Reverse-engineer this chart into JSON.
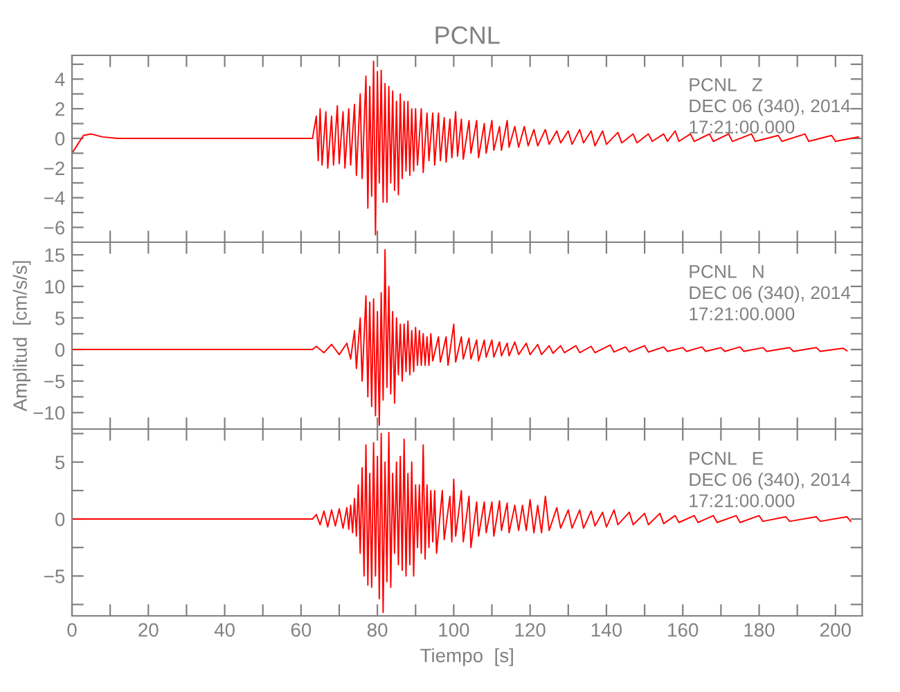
{
  "chart_data": [
    {
      "type": "line",
      "title": "PCNL",
      "xlim": [
        0,
        207
      ],
      "ylim": [
        -7,
        5.6
      ],
      "tick_labels": "y",
      "xticks": [
        0,
        {
          "value": 10,
          "label": null
        },
        20,
        {
          "value": 30,
          "label": null
        },
        40,
        {
          "value": 50,
          "label": null
        },
        60,
        {
          "value": 70,
          "label": null
        },
        80,
        {
          "value": 90,
          "label": null
        },
        100,
        {
          "value": 110,
          "label": null
        },
        120,
        {
          "value": 130,
          "label": null
        },
        140,
        {
          "value": 150,
          "label": null
        },
        160,
        {
          "value": 170,
          "label": null
        },
        180,
        {
          "value": 190,
          "label": null
        },
        200
      ],
      "yticks": [
        -6,
        {
          "value": -5,
          "label": null
        },
        -4,
        {
          "value": -3,
          "label": null
        },
        -2,
        {
          "value": -1,
          "label": null
        },
        0,
        {
          "value": 1,
          "label": null
        },
        2,
        {
          "value": 3,
          "label": null
        },
        4,
        {
          "value": 5,
          "label": null
        }
      ],
      "annotations": [
        "PCNL   Z",
        "DEC 06 (340), 2014",
        "17:21:00.000"
      ],
      "series": [
        {
          "color": "#ff0000",
          "x": [
            0,
            1,
            3,
            5,
            8,
            12,
            63,
            64,
            64.5,
            65,
            65.5,
            66.5,
            67,
            68,
            68.5,
            69.5,
            70,
            71,
            71.5,
            72.5,
            73,
            74,
            74.5,
            75.5,
            76,
            77,
            77.5,
            78,
            78.5,
            79,
            79.5,
            80,
            80.5,
            81,
            81.5,
            82,
            82.5,
            83,
            83.5,
            84,
            84.5,
            85,
            85.5,
            86,
            86.5,
            87,
            87.5,
            88,
            88.5,
            89,
            89.5,
            90,
            90.5,
            91.5,
            92,
            93,
            93.5,
            94.5,
            95,
            96,
            96.5,
            97.5,
            98,
            99,
            99.5,
            100.5,
            101,
            102,
            102.5,
            104,
            104.5,
            106,
            106.5,
            108,
            108.5,
            110,
            110.5,
            112,
            112.5,
            114,
            114.5,
            116,
            117,
            118.5,
            119.5,
            121,
            122,
            124,
            125,
            127,
            128,
            130,
            131,
            133,
            134,
            136,
            137,
            139,
            140,
            143,
            144,
            147,
            148,
            151,
            152,
            155,
            156,
            158,
            159,
            162,
            163,
            167,
            168,
            172,
            173,
            178,
            179,
            185,
            186,
            192,
            193,
            199,
            200,
            206
          ],
          "values": [
            -1.0,
            -0.6,
            0.2,
            0.3,
            0.1,
            0,
            0,
            1.5,
            -1.5,
            2,
            -1.8,
            1.8,
            -2,
            1.5,
            -1.8,
            2.2,
            -1.7,
            1.8,
            -2,
            2,
            -1.8,
            2.3,
            -2.5,
            3,
            -2.7,
            4.2,
            -4.7,
            3.5,
            -3.9,
            5.2,
            -6.5,
            4.5,
            -3,
            4.6,
            -4.3,
            3.7,
            -4.3,
            3.5,
            -3,
            3.2,
            -3.5,
            2.5,
            -3.8,
            3,
            -2.7,
            2.5,
            -2.2,
            2.5,
            -2.5,
            2,
            -2.2,
            2,
            -1.8,
            2,
            -2.3,
            1.7,
            -1.5,
            1.7,
            -1.8,
            1.7,
            -1.5,
            1.4,
            -1.6,
            1.3,
            -1.3,
            1.8,
            -1.2,
            1.3,
            -1.4,
            1.2,
            -1,
            1.2,
            -1.3,
            1,
            -1,
            1.2,
            -0.8,
            0.8,
            -0.8,
            1.2,
            -0.6,
            0.8,
            -0.6,
            0.8,
            -0.5,
            0.6,
            -0.5,
            0.6,
            -0.4,
            0.5,
            -0.3,
            0.5,
            -0.4,
            0.6,
            -0.3,
            0.5,
            -0.5,
            0.5,
            -0.4,
            0.4,
            -0.3,
            0.3,
            -0.3,
            0.3,
            -0.2,
            0.3,
            -0.2,
            0.5,
            -0.2,
            0.3,
            -0.2,
            0.3,
            -0.2,
            0.3,
            -0.2,
            0.3,
            -0.2,
            0.2,
            -0.2,
            0.3,
            -0.2,
            0.2,
            -0.2,
            0.1
          ]
        }
      ]
    },
    {
      "type": "line",
      "ylabel": "Amplitud  [cm/s/s]",
      "xlim": [
        0,
        207
      ],
      "ylim": [
        -12.6,
        17
      ],
      "tick_labels": "y",
      "xticks": [
        0,
        {
          "value": 10,
          "label": null
        },
        20,
        {
          "value": 30,
          "label": null
        },
        40,
        {
          "value": 50,
          "label": null
        },
        60,
        {
          "value": 70,
          "label": null
        },
        80,
        {
          "value": 90,
          "label": null
        },
        100,
        {
          "value": 110,
          "label": null
        },
        120,
        {
          "value": 130,
          "label": null
        },
        140,
        {
          "value": 150,
          "label": null
        },
        160,
        {
          "value": 170,
          "label": null
        },
        180,
        {
          "value": 190,
          "label": null
        },
        200
      ],
      "yticks": [
        -10,
        {
          "value": -7.5,
          "label": null
        },
        -5,
        {
          "value": -2.5,
          "label": null
        },
        0,
        {
          "value": 2.5,
          "label": null
        },
        5,
        {
          "value": 7.5,
          "label": null
        },
        10,
        {
          "value": 12.5,
          "label": null
        },
        15
      ],
      "annotations": [
        "PCNL   N",
        "DEC 06 (340), 2014",
        "17:21:00.000"
      ],
      "series": [
        {
          "color": "#ff0000",
          "x": [
            0,
            63,
            64,
            66,
            68,
            70,
            72,
            73,
            74,
            74.5,
            75.5,
            76,
            77,
            77.5,
            78,
            78.5,
            79,
            79.5,
            80,
            80.5,
            81,
            81.5,
            82,
            82.5,
            83,
            83.5,
            84,
            84.5,
            85,
            85.5,
            86,
            86.5,
            87,
            87.5,
            88,
            88.5,
            89,
            89.5,
            90,
            90.5,
            91,
            91.5,
            92,
            92.5,
            93,
            93.5,
            94,
            94.5,
            96,
            96.5,
            98,
            98.5,
            100,
            100.5,
            102,
            102.5,
            104,
            104.5,
            106,
            106.5,
            108,
            108.5,
            110,
            110.5,
            112,
            112.5,
            114,
            114.5,
            116,
            117,
            119,
            120,
            122,
            123,
            125,
            126,
            128,
            129,
            132,
            133,
            136,
            137,
            141,
            142,
            145,
            146,
            150,
            151,
            155,
            156,
            160,
            161,
            165,
            166,
            170,
            171,
            175,
            176,
            181,
            182,
            188,
            189,
            195,
            196,
            202,
            203
          ],
          "values": [
            0,
            0,
            0.5,
            -0.5,
            0.8,
            -0.8,
            1,
            -1.5,
            3,
            -3,
            5,
            -5,
            8.5,
            -7.5,
            7.5,
            -9,
            8,
            -10.5,
            6,
            -12,
            9,
            -8,
            15.8,
            -6,
            10,
            -7,
            6,
            -8.5,
            5,
            -4,
            4,
            -5,
            4,
            -3.5,
            4.5,
            -4,
            3,
            -3.5,
            3.5,
            -2.5,
            3,
            -2.5,
            2.5,
            -2.5,
            2,
            -2.5,
            2.5,
            -1.8,
            2,
            -2,
            2,
            -2.5,
            4,
            -2,
            2,
            -1.5,
            1.8,
            -1.5,
            1.5,
            -1.8,
            1.5,
            -1.2,
            1.5,
            -1.2,
            1.2,
            -1,
            1,
            -1,
            1.2,
            -0.8,
            1,
            -0.8,
            0.8,
            -0.8,
            0.6,
            -0.6,
            0.6,
            -0.5,
            0.6,
            -0.5,
            0.5,
            -0.5,
            0.7,
            -0.4,
            0.4,
            -0.4,
            0.6,
            -0.4,
            0.4,
            -0.3,
            0.3,
            -0.3,
            0.4,
            -0.3,
            0.3,
            -0.3,
            0.4,
            -0.3,
            0.3,
            -0.3,
            0.3,
            -0.3,
            0.3,
            -0.3,
            0.2,
            -0.2
          ]
        }
      ]
    },
    {
      "type": "line",
      "xlabel": "Tiempo  [s]",
      "xlim": [
        0,
        207
      ],
      "ylim": [
        -8.5,
        7.9
      ],
      "xticks": [
        0,
        {
          "value": 10,
          "label": null
        },
        20,
        {
          "value": 30,
          "label": null
        },
        40,
        {
          "value": 50,
          "label": null
        },
        60,
        {
          "value": 70,
          "label": null
        },
        80,
        {
          "value": 90,
          "label": null
        },
        100,
        {
          "value": 110,
          "label": null
        },
        120,
        {
          "value": 130,
          "label": null
        },
        140,
        {
          "value": 150,
          "label": null
        },
        160,
        {
          "value": 170,
          "label": null
        },
        180,
        {
          "value": 190,
          "label": null
        },
        200
      ],
      "yticks": [
        {
          "value": -7.5,
          "label": null
        },
        -5,
        {
          "value": -2.5,
          "label": null
        },
        0,
        {
          "value": 2.5,
          "label": null
        },
        5,
        {
          "value": 7.5,
          "label": null
        }
      ],
      "annotations": [
        "PCNL   E",
        "DEC 06 (340), 2014",
        "17:21:00.000"
      ],
      "series": [
        {
          "color": "#ff0000",
          "x": [
            0,
            63,
            64,
            65,
            66,
            67,
            68,
            69,
            70,
            71,
            72,
            72.5,
            73,
            73.5,
            74,
            74.5,
            75,
            75.5,
            76,
            76.5,
            77,
            77.5,
            78,
            78.5,
            79,
            79.5,
            80,
            80.5,
            81,
            81.5,
            82,
            82.5,
            83,
            83.5,
            84,
            84.5,
            85,
            85.5,
            86,
            86.5,
            87,
            87.5,
            88,
            88.5,
            89,
            89.5,
            90,
            90.5,
            91,
            91.5,
            92,
            92.5,
            93,
            93.5,
            94,
            94.5,
            95,
            95.5,
            97,
            97.5,
            99,
            99.5,
            100,
            100.5,
            102,
            102.5,
            104,
            104.5,
            106,
            106.5,
            108,
            108.5,
            110,
            110.5,
            112,
            112.5,
            114,
            114.5,
            116,
            117,
            118,
            119,
            120,
            121,
            122,
            123,
            124,
            125,
            127,
            128,
            130,
            131,
            133,
            134,
            136,
            137,
            139,
            140,
            142,
            143,
            146,
            147,
            150,
            151,
            154,
            155,
            158,
            159,
            163,
            164,
            168,
            169,
            174,
            175,
            180,
            181,
            187,
            188,
            195,
            196,
            203,
            204
          ],
          "values": [
            0,
            0,
            0.4,
            -0.5,
            0.7,
            -0.7,
            0.8,
            -0.6,
            0.9,
            -0.8,
            1,
            -0.9,
            1.2,
            -1.2,
            1.8,
            -1.5,
            3,
            -3,
            4.5,
            -5,
            6.5,
            -5.8,
            4,
            -6,
            6.7,
            -5,
            5.5,
            -7,
            7.5,
            -8.2,
            5,
            -5.5,
            7.6,
            -6,
            4,
            -3,
            5,
            -4,
            5.5,
            -4.5,
            7,
            -5,
            4,
            -4,
            5,
            -5,
            3,
            -2.5,
            3,
            -3,
            6.5,
            -3.5,
            3,
            -2.5,
            2.5,
            -2,
            2.5,
            -3,
            2.5,
            -1.8,
            2,
            -2,
            3.5,
            -1.5,
            2.5,
            -2,
            2,
            -2.5,
            1.5,
            -1.5,
            1.5,
            -1.2,
            1.5,
            -1.5,
            1.6,
            -1,
            1.4,
            -1.2,
            1.2,
            -1,
            1.2,
            -1,
            1.7,
            -1.2,
            1.2,
            -1.2,
            2,
            -1,
            1,
            -0.8,
            0.8,
            -0.8,
            0.8,
            -0.8,
            0.7,
            -0.6,
            0.6,
            -0.7,
            0.8,
            -0.5,
            0.6,
            -0.5,
            0.5,
            -0.5,
            0.5,
            -0.4,
            0.3,
            -0.3,
            0.3,
            -0.3,
            0.3,
            -0.3,
            0.3,
            -0.3,
            0.3,
            -0.2,
            0.2,
            -0.2,
            0.2,
            -0.2,
            0.2,
            -0.2
          ]
        }
      ]
    }
  ]
}
